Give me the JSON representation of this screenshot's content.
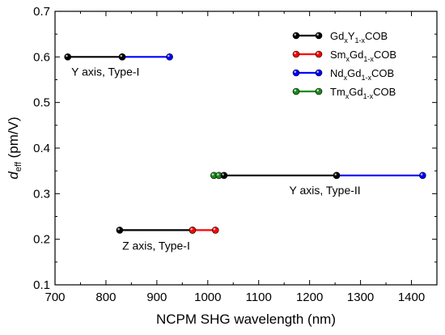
{
  "chart_data": {
    "type": "line",
    "title": "",
    "xlabel": "NCPM SHG wavelength (nm)",
    "ylabel": {
      "main": "d",
      "sub": "eff",
      "rest": " (pm/V)"
    },
    "xlim": [
      700,
      1450
    ],
    "ylim": [
      0.1,
      0.7
    ],
    "xticks": [
      700,
      800,
      900,
      1000,
      1100,
      1200,
      1300,
      1400
    ],
    "yticks": [
      0.1,
      0.2,
      0.3,
      0.4,
      0.5,
      0.6,
      0.7
    ],
    "xtick_labels": [
      "700",
      "800",
      "900",
      "1000",
      "1100",
      "1200",
      "1300",
      "1400"
    ],
    "ytick_labels": [
      "0.1",
      "0.2",
      "0.3",
      "0.4",
      "0.5",
      "0.6",
      "0.7"
    ],
    "grid": false,
    "legend_position": "top-right",
    "series": [
      {
        "legend": {
          "pre": "Gd",
          "s1": "x",
          "mid": "Y",
          "s2": "1-x",
          "post": "COB"
        },
        "color": "#000000",
        "segments": [
          [
            [
              725,
              0.6
            ],
            [
              832,
              0.6
            ]
          ],
          [
            [
              1032,
              0.34
            ],
            [
              1253,
              0.34
            ]
          ],
          [
            [
              827,
              0.22
            ],
            [
              970,
              0.22
            ]
          ]
        ]
      },
      {
        "legend": {
          "pre": "Sm",
          "s1": "x",
          "mid": "Gd",
          "s2": "1-x",
          "post": "COB"
        },
        "color": "#ff0000",
        "segments": [
          [
            [
              970,
              0.22
            ],
            [
              1015,
              0.22
            ]
          ]
        ]
      },
      {
        "legend": {
          "pre": "Nd",
          "s1": "x",
          "mid": "Gd",
          "s2": "1-x",
          "post": "COB"
        },
        "color": "#0000ff",
        "segments": [
          [
            [
              832,
              0.6
            ],
            [
              925,
              0.6
            ]
          ],
          [
            [
              1253,
              0.34
            ],
            [
              1422,
              0.34
            ]
          ]
        ]
      },
      {
        "legend": {
          "pre": "Tm",
          "s1": "x",
          "mid": "Gd",
          "s2": "1-x",
          "post": "COB"
        },
        "color": "#1a8a1a",
        "segments": [
          [
            [
              1012,
              0.34
            ],
            [
              1022,
              0.34
            ]
          ]
        ]
      }
    ],
    "annotations": [
      {
        "text": "Y axis, Type-I",
        "x": 732,
        "y": 0.568
      },
      {
        "text": "Y axis, Type-II",
        "x": 1160,
        "y": 0.308
      },
      {
        "text": "Z axis, Type-I",
        "x": 832,
        "y": 0.186
      }
    ]
  }
}
